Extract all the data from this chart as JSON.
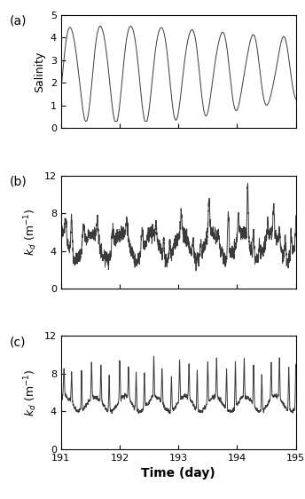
{
  "title": "",
  "xlabel": "Time (day)",
  "panel_labels": [
    "(a)",
    "(b)",
    "(c)"
  ],
  "xlim": [
    191,
    195
  ],
  "xticks": [
    191,
    192,
    193,
    194,
    195
  ],
  "xticklabels": [
    "191",
    "192",
    "193",
    "194",
    "195"
  ],
  "panel_a": {
    "ylabel": "Salinity",
    "ylim": [
      0,
      5
    ],
    "yticks": [
      0,
      1,
      2,
      3,
      4,
      5
    ]
  },
  "panel_b": {
    "ylabel": "k_d (m^{-1})",
    "ylim": [
      0,
      12
    ],
    "yticks": [
      0,
      4,
      8,
      12
    ]
  },
  "panel_c": {
    "ylabel": "k_d (m^{-1})",
    "ylim": [
      0,
      12
    ],
    "yticks": [
      0,
      4,
      8,
      12
    ]
  },
  "line_color": "#3a3a3a",
  "line_width": 0.7,
  "background_color": "#ffffff"
}
